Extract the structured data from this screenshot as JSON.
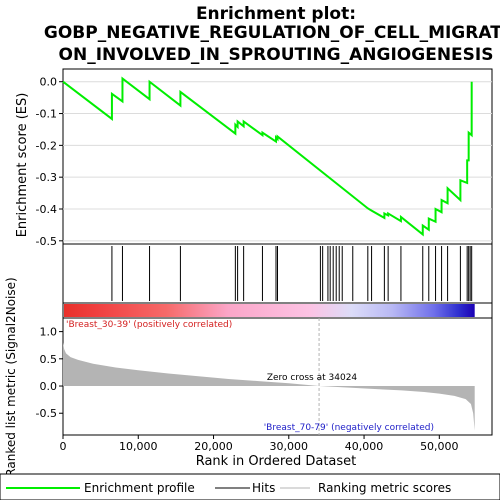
{
  "chart_data": {
    "type": "line",
    "title_line1": "Enrichment plot:",
    "title_line2": "GOBP_NEGATIVE_REGULATION_OF_CELL_MIGRATI",
    "title_line3": "ON_INVOLVED_IN_SPROUTING_ANGIOGENESIS",
    "es_ylabel": "Enrichment score (ES)",
    "metric_ylabel": "Ranked list metric (Signal2Noise)",
    "xlabel": "Rank in Ordered Dataset",
    "xlim": [
      0,
      57000
    ],
    "es_ylim": [
      -0.51,
      0.04
    ],
    "metric_ylim": [
      -0.9,
      1.25
    ],
    "x_ticks": [
      0,
      10000,
      20000,
      30000,
      40000,
      50000
    ],
    "x_tick_labels": [
      "0",
      "10,000",
      "20,000",
      "30,000",
      "40,000",
      "50,000"
    ],
    "es_ticks": [
      0.0,
      -0.1,
      -0.2,
      -0.3,
      -0.4,
      -0.5
    ],
    "es_tick_labels": [
      "0.0",
      "-0.1",
      "-0.2",
      "-0.3",
      "-0.4",
      "-0.5"
    ],
    "metric_ticks": [
      1.0,
      0.5,
      0.0,
      -0.5
    ],
    "metric_tick_labels": [
      "1.0",
      "0.5",
      "0.0",
      "-0.5"
    ],
    "n_genes": 54700,
    "zero_cross": 34024,
    "zero_cross_label": "Zero cross at 34024",
    "pos_label": "'Breast_30-39' (positively correlated)",
    "neg_label": "'Breast_70-79' (negatively correlated)",
    "hits": [
      6500,
      7900,
      11500,
      15600,
      22900,
      23200,
      24000,
      26500,
      28300,
      28500,
      34200,
      34500,
      35200,
      35500,
      35900,
      36300,
      36700,
      37100,
      38500,
      40500,
      41000,
      42700,
      43200,
      44900,
      47800,
      48600,
      49500,
      50300,
      51100,
      52800,
      53700,
      53900,
      54100,
      54300
    ],
    "es_curve": [
      [
        0,
        0.0
      ],
      [
        6500,
        -0.117
      ],
      [
        6501,
        -0.038
      ],
      [
        7900,
        -0.062
      ],
      [
        7901,
        0.01
      ],
      [
        11500,
        -0.055
      ],
      [
        11501,
        0.0
      ],
      [
        15600,
        -0.075
      ],
      [
        15601,
        -0.032
      ],
      [
        22900,
        -0.163
      ],
      [
        22901,
        -0.135
      ],
      [
        23200,
        -0.142
      ],
      [
        23201,
        -0.125
      ],
      [
        24000,
        -0.14
      ],
      [
        24001,
        -0.125
      ],
      [
        26500,
        -0.168
      ],
      [
        26501,
        -0.16
      ],
      [
        28300,
        -0.188
      ],
      [
        28301,
        -0.175
      ],
      [
        28500,
        -0.18
      ],
      [
        28501,
        -0.172
      ],
      [
        40500,
        -0.398
      ],
      [
        41000,
        -0.405
      ],
      [
        42700,
        -0.428
      ],
      [
        42701,
        -0.414
      ],
      [
        43200,
        -0.42
      ],
      [
        43201,
        -0.414
      ],
      [
        44900,
        -0.438
      ],
      [
        44901,
        -0.425
      ],
      [
        47800,
        -0.48
      ],
      [
        47801,
        -0.452
      ],
      [
        48600,
        -0.465
      ],
      [
        48601,
        -0.43
      ],
      [
        49500,
        -0.44
      ],
      [
        49501,
        -0.4
      ],
      [
        50300,
        -0.41
      ],
      [
        50301,
        -0.372
      ],
      [
        51100,
        -0.382
      ],
      [
        51101,
        -0.335
      ],
      [
        52800,
        -0.372
      ],
      [
        52801,
        -0.31
      ],
      [
        53700,
        -0.318
      ],
      [
        53701,
        -0.247
      ],
      [
        53900,
        -0.247
      ],
      [
        53901,
        -0.16
      ],
      [
        54300,
        -0.168
      ],
      [
        54301,
        0.0
      ]
    ],
    "metric_profile": [
      [
        0,
        0.8
      ],
      [
        150,
        0.68
      ],
      [
        400,
        0.6
      ],
      [
        1000,
        0.53
      ],
      [
        2000,
        0.48
      ],
      [
        4000,
        0.41
      ],
      [
        7000,
        0.34
      ],
      [
        10000,
        0.29
      ],
      [
        14000,
        0.23
      ],
      [
        18000,
        0.18
      ],
      [
        22000,
        0.13
      ],
      [
        26000,
        0.09
      ],
      [
        30000,
        0.05
      ],
      [
        34024,
        0.0
      ],
      [
        38000,
        -0.03
      ],
      [
        42000,
        -0.06
      ],
      [
        45000,
        -0.08
      ],
      [
        48000,
        -0.11
      ],
      [
        50000,
        -0.14
      ],
      [
        52000,
        -0.18
      ],
      [
        53500,
        -0.24
      ],
      [
        54200,
        -0.33
      ],
      [
        54500,
        -0.5
      ],
      [
        54700,
        -0.82
      ]
    ],
    "legend_entries": [
      "Enrichment profile",
      "Hits",
      "Ranking metric scores"
    ],
    "colors": {
      "es_line": "#00ee00",
      "hit_line": "#000000",
      "metric_fill": "#b4b4b4",
      "pos_text": "#d42020",
      "neg_text": "#2020c8",
      "zero_line": "#b4b4b4"
    },
    "colorbar_stops": [
      {
        "pos": 0.0,
        "color": "#e8302a"
      },
      {
        "pos": 0.08,
        "color": "#f04040"
      },
      {
        "pos": 0.25,
        "color": "#f66a6a"
      },
      {
        "pos": 0.4,
        "color": "#fba6c8"
      },
      {
        "pos": 0.6,
        "color": "#fcc3e4"
      },
      {
        "pos": 0.7,
        "color": "#dcdcf8"
      },
      {
        "pos": 0.8,
        "color": "#b8b8f4"
      },
      {
        "pos": 0.9,
        "color": "#7070ea"
      },
      {
        "pos": 0.96,
        "color": "#3030d0"
      },
      {
        "pos": 1.0,
        "color": "#1a00b4"
      }
    ]
  }
}
